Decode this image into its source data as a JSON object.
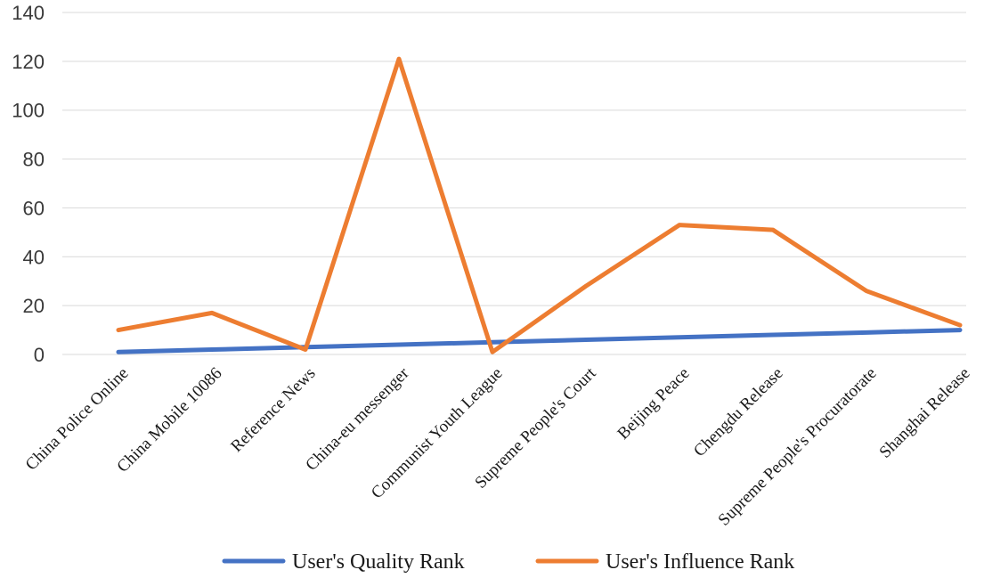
{
  "chart_data": {
    "type": "line",
    "categories": [
      "China Police Online",
      "China Mobile 10086",
      "Reference News",
      "China-eu messenger",
      "Communist Youth League",
      "Supreme People's Court",
      "Beijing Peace",
      "Chengdu Release",
      "Supreme People's Procuratorate",
      "Shanghai Release"
    ],
    "series": [
      {
        "name": "User's Quality Rank",
        "color": "#4472c4",
        "values": [
          1,
          2,
          3,
          4,
          5,
          6,
          7,
          8,
          9,
          10
        ]
      },
      {
        "name": "User's Influence Rank",
        "color": "#ed7d31",
        "values": [
          10,
          17,
          2,
          121,
          1,
          28,
          53,
          51,
          26,
          12
        ]
      }
    ],
    "ylim": [
      0,
      140
    ],
    "yticks": [
      "0",
      "20",
      "40",
      "60",
      "80",
      "100",
      "120",
      "140"
    ],
    "grid": true,
    "legend_position": "bottom"
  }
}
